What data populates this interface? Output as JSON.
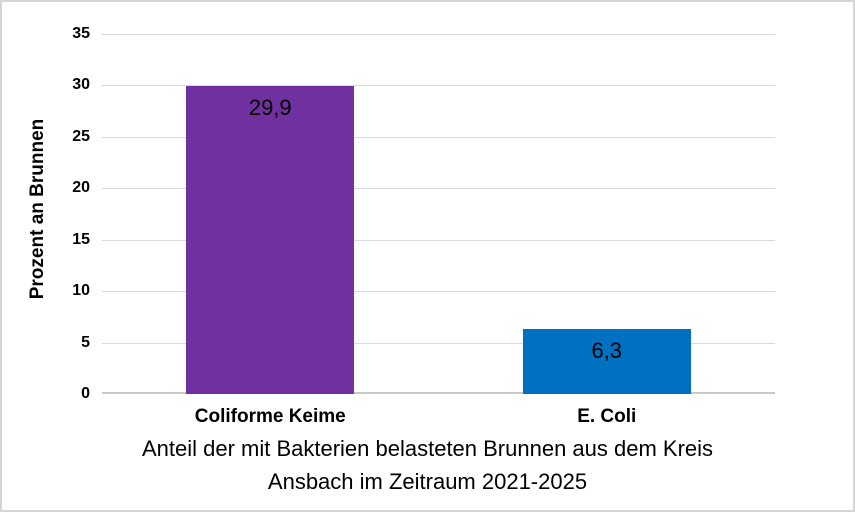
{
  "chart": {
    "title_line1": "Anteil der mit Bakterien belasteten Brunnen aus dem Kreis",
    "title_line2": "Ansbach im Zeitraum 2021-2025"
  },
  "chart_data": {
    "type": "bar",
    "categories": [
      "Coliforme Keime",
      "E. Coli"
    ],
    "values": [
      29.9,
      6.3
    ],
    "value_labels": [
      "29,9",
      "6,3"
    ],
    "bar_colors": [
      "#7030A0",
      "#0070C0"
    ],
    "title": "Anteil der mit Bakterien belasteten Brunnen aus dem Kreis Ansbach im Zeitraum 2021-2025",
    "xlabel": "",
    "ylabel": "Prozent an Brunnen",
    "ylim": [
      0,
      35
    ],
    "yticks": [
      0,
      5,
      10,
      15,
      20,
      25,
      30,
      35
    ],
    "grid": "horizontal",
    "legend": "none",
    "gridline_color": "#D9D9D9",
    "axis_line_color": "#C9C9C9",
    "label_color": "#000000",
    "background_color": "#FFFFFF",
    "frame_color": "#D6D6D6"
  }
}
